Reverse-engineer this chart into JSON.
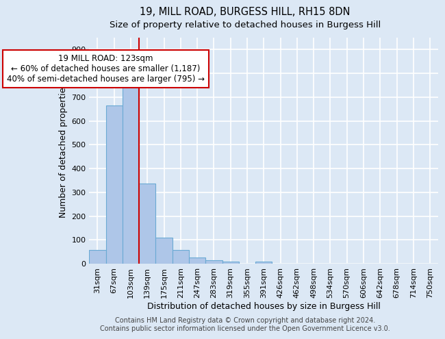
{
  "title_line1": "19, MILL ROAD, BURGESS HILL, RH15 8DN",
  "title_line2": "Size of property relative to detached houses in Burgess Hill",
  "xlabel": "Distribution of detached houses by size in Burgess Hill",
  "ylabel": "Number of detached properties",
  "bar_color": "#aec6e8",
  "bar_edge_color": "#6aaad4",
  "bin_labels": [
    "31sqm",
    "67sqm",
    "103sqm",
    "139sqm",
    "175sqm",
    "211sqm",
    "247sqm",
    "283sqm",
    "319sqm",
    "355sqm",
    "391sqm",
    "426sqm",
    "462sqm",
    "498sqm",
    "534sqm",
    "570sqm",
    "606sqm",
    "642sqm",
    "678sqm",
    "714sqm",
    "750sqm"
  ],
  "bar_heights": [
    58,
    665,
    750,
    338,
    108,
    57,
    25,
    14,
    8,
    0,
    8,
    0,
    0,
    0,
    0,
    0,
    0,
    0,
    0,
    0,
    0
  ],
  "vline_x": 2.5,
  "vline_color": "#cc0000",
  "annotation_text": "19 MILL ROAD: 123sqm\n← 60% of detached houses are smaller (1,187)\n40% of semi-detached houses are larger (795) →",
  "annotation_box_color": "#ffffff",
  "annotation_box_edge_color": "#cc0000",
  "ylim": [
    0,
    950
  ],
  "yticks": [
    0,
    100,
    200,
    300,
    400,
    500,
    600,
    700,
    800,
    900
  ],
  "footnote_line1": "Contains HM Land Registry data © Crown copyright and database right 2024.",
  "footnote_line2": "Contains public sector information licensed under the Open Government Licence v3.0.",
  "background_color": "#dce8f5",
  "fig_background_color": "#dce8f5",
  "grid_color": "#ffffff",
  "title_fontsize": 10.5,
  "subtitle_fontsize": 9.5,
  "axis_label_fontsize": 9,
  "tick_fontsize": 8,
  "annotation_fontsize": 8.5,
  "footnote_fontsize": 7
}
